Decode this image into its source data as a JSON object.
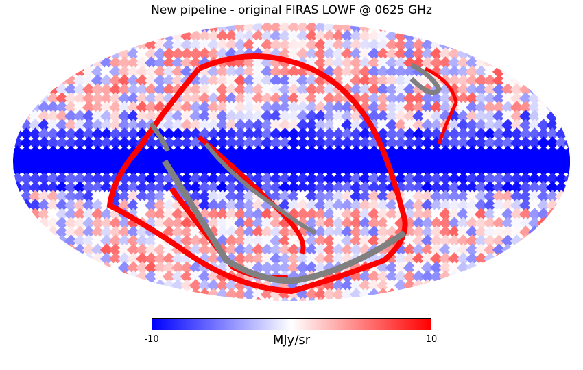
{
  "title": "New pipeline - original FIRAS LOWF @ 0625 GHz",
  "colorbar": {
    "min_label": "-10",
    "max_label": "10",
    "unit": "MJy/sr",
    "min": -10,
    "max": 10,
    "colors": [
      "#0000ff",
      "#ffffff",
      "#ff0000"
    ]
  },
  "map": {
    "projection": "mollweide",
    "masked_color": "#808080",
    "background": "#ffffff"
  }
}
